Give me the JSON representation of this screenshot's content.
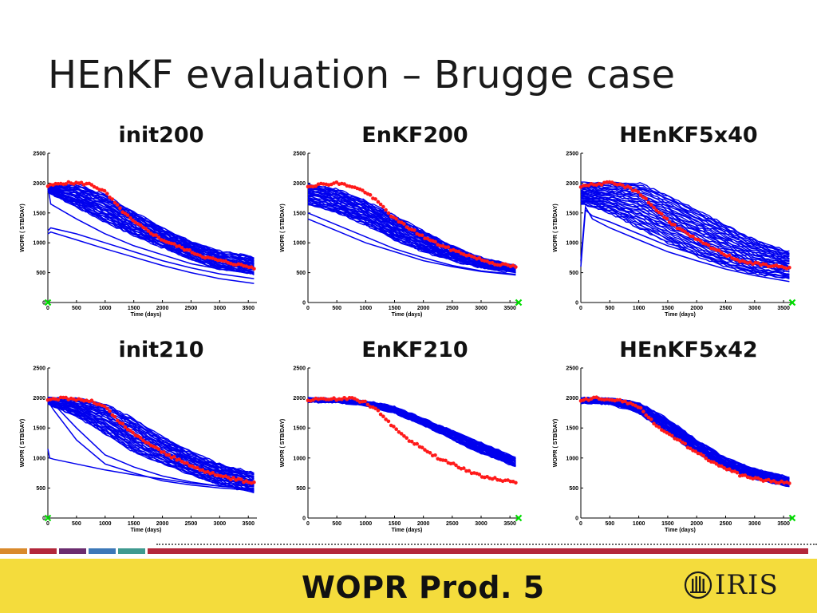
{
  "slide": {
    "title": "HEnKF evaluation – Brugge case",
    "footer_title": "WOPR Prod. 5",
    "logo_text": "IRIS"
  },
  "colors": {
    "ensemble": "#0000ee",
    "observed": "#ff1a1a",
    "marker": "#00dd00",
    "footer_bg": "#f4dc3c",
    "band": [
      "#d98a2b",
      "#b3273a",
      "#6b2d6f",
      "#3d78b8",
      "#3f9a8f",
      "#b3273a"
    ]
  },
  "chart_data": [
    {
      "type": "line",
      "title": "init200",
      "xlabel": "Time (days)",
      "ylabel": "WOPR ( STB/DAY)",
      "xlim": [
        0,
        3650
      ],
      "ylim": [
        0,
        2500
      ],
      "xticks": [
        0,
        500,
        1000,
        1500,
        2000,
        2500,
        3000,
        3500
      ],
      "yticks": [
        0,
        500,
        1000,
        1500,
        2000,
        2500
      ],
      "ensemble": {
        "name": "ensemble",
        "count": "many",
        "x": [
          0,
          500,
          1000,
          1500,
          2000,
          2500,
          3000,
          3600
        ],
        "upper": [
          1950,
          1980,
          1800,
          1520,
          1250,
          1020,
          860,
          760
        ],
        "lower": [
          1850,
          1600,
          1350,
          1120,
          920,
          720,
          560,
          470
        ],
        "outliers": [
          {
            "x": [
              0,
              50,
              500,
              1000,
              1500,
              2000,
              2500,
              3000,
              3600
            ],
            "y": [
              1950,
              1650,
              1400,
              1150,
              950,
              800,
              650,
              560,
              480
            ]
          },
          {
            "x": [
              0,
              50,
              500,
              1000,
              1500,
              2000,
              2500,
              3000,
              3600
            ],
            "y": [
              1200,
              1250,
              1150,
              1000,
              850,
              700,
              580,
              480,
              400
            ]
          },
          {
            "x": [
              0,
              50,
              500,
              1000,
              1500,
              2000,
              2500,
              3000,
              3600
            ],
            "y": [
              1150,
              1180,
              1050,
              900,
              760,
              620,
              500,
              400,
              320
            ]
          }
        ]
      },
      "observed": {
        "name": "observed",
        "x": [
          0,
          250,
          500,
          750,
          1000,
          1250,
          1500,
          1750,
          2000,
          2250,
          2500,
          2750,
          3000,
          3250,
          3600
        ],
        "y": [
          1950,
          2000,
          2000,
          1980,
          1850,
          1580,
          1350,
          1200,
          1050,
          950,
          850,
          760,
          700,
          650,
          580
        ]
      },
      "marker": {
        "x": 0,
        "y": 0
      }
    },
    {
      "type": "line",
      "title": "EnKF200",
      "xlabel": "Time (days)",
      "ylabel": "WOPR ( STB/DAY)",
      "xlim": [
        0,
        3650
      ],
      "ylim": [
        0,
        2500
      ],
      "xticks": [
        0,
        500,
        1000,
        1500,
        2000,
        2500,
        3000,
        3500
      ],
      "yticks": [
        0,
        500,
        1000,
        1500,
        2000,
        2500
      ],
      "ensemble": {
        "name": "ensemble",
        "count": "many",
        "x": [
          0,
          500,
          1000,
          1500,
          2000,
          2500,
          3000,
          3600
        ],
        "upper": [
          1980,
          1900,
          1700,
          1450,
          1200,
          950,
          750,
          620
        ],
        "lower": [
          1650,
          1500,
          1300,
          1050,
          850,
          700,
          580,
          500
        ],
        "outliers": [
          {
            "x": [
              0,
              500,
              1000,
              1500,
              2000,
              2500,
              3000,
              3600
            ],
            "y": [
              1500,
              1300,
              1100,
              900,
              750,
              620,
              530,
              470
            ]
          },
          {
            "x": [
              0,
              500,
              1000,
              1500,
              2000,
              2500,
              3000,
              3600
            ],
            "y": [
              1400,
              1200,
              1000,
              850,
              700,
              600,
              520,
              460
            ]
          }
        ]
      },
      "observed": {
        "name": "observed",
        "x": [
          0,
          250,
          500,
          750,
          1000,
          1250,
          1500,
          1750,
          2000,
          2250,
          2500,
          2750,
          3000,
          3250,
          3600
        ],
        "y": [
          1950,
          1980,
          2000,
          1950,
          1850,
          1650,
          1400,
          1250,
          1100,
          980,
          880,
          800,
          720,
          650,
          600
        ]
      },
      "marker": {
        "x": 3650,
        "y": 0
      }
    },
    {
      "type": "line",
      "title": "HEnKF5x40",
      "xlabel": "Time (days)",
      "ylabel": "WOPR ( STB/DAY)",
      "xlim": [
        0,
        3650
      ],
      "ylim": [
        0,
        2500
      ],
      "xticks": [
        0,
        500,
        1000,
        1500,
        2000,
        2500,
        3000,
        3500
      ],
      "yticks": [
        0,
        500,
        1000,
        1500,
        2000,
        2500
      ],
      "ensemble": {
        "name": "ensemble",
        "count": "many",
        "x": [
          0,
          500,
          1000,
          1500,
          2000,
          2500,
          3000,
          3600
        ],
        "upper": [
          2000,
          2000,
          2000,
          1800,
          1550,
          1300,
          1050,
          850
        ],
        "lower": [
          1650,
          1500,
          1250,
          1000,
          780,
          600,
          480,
          400
        ],
        "outliers": [
          {
            "x": [
              0,
              80,
              200,
              500,
              1000,
              1500,
              2000,
              2500,
              3000,
              3600
            ],
            "y": [
              600,
              1550,
              1450,
              1350,
              1150,
              950,
              800,
              650,
              520,
              420
            ]
          },
          {
            "x": [
              0,
              80,
              200,
              500,
              1000,
              1500,
              2000,
              2500,
              3000,
              3600
            ],
            "y": [
              700,
              1600,
              1400,
              1250,
              1050,
              850,
              700,
              560,
              450,
              350
            ]
          }
        ]
      },
      "observed": {
        "name": "observed",
        "x": [
          0,
          250,
          500,
          750,
          1000,
          1250,
          1500,
          1750,
          2000,
          2250,
          2500,
          2750,
          3000,
          3250,
          3600
        ],
        "y": [
          1950,
          1980,
          2000,
          1950,
          1850,
          1600,
          1380,
          1200,
          1050,
          920,
          800,
          700,
          650,
          620,
          580
        ]
      },
      "marker": {
        "x": 3650,
        "y": 0
      }
    },
    {
      "type": "line",
      "title": "init210",
      "xlabel": "Time (days)",
      "ylabel": "WOPR ( STB/DAY)",
      "xlim": [
        0,
        3650
      ],
      "ylim": [
        0,
        2500
      ],
      "xticks": [
        0,
        500,
        1000,
        1500,
        2000,
        2500,
        3000,
        3500
      ],
      "yticks": [
        0,
        500,
        1000,
        1500,
        2000,
        2500
      ],
      "ensemble": {
        "name": "ensemble",
        "count": "many",
        "x": [
          0,
          500,
          1000,
          1500,
          2000,
          2500,
          3000,
          3600
        ],
        "upper": [
          2000,
          2000,
          1900,
          1650,
          1350,
          1100,
          900,
          750
        ],
        "lower": [
          1900,
          1700,
          1400,
          1100,
          900,
          720,
          550,
          420
        ],
        "outliers": [
          {
            "x": [
              0,
              100,
              500,
              1000,
              1500,
              2000,
              2500,
              3000,
              3600
            ],
            "y": [
              1950,
              1900,
              1500,
              1050,
              850,
              700,
              600,
              530,
              480
            ]
          },
          {
            "x": [
              0,
              100,
              500,
              1000,
              1500,
              2000,
              2500,
              3000,
              3600
            ],
            "y": [
              1950,
              1800,
              1300,
              900,
              750,
              620,
              550,
              500,
              460
            ]
          },
          {
            "x": [
              0,
              30,
              100,
              500,
              1000,
              1500,
              2000,
              2500,
              3000,
              3600
            ],
            "y": [
              1150,
              1000,
              980,
              900,
              800,
              720,
              650,
              580,
              530,
              490
            ]
          }
        ]
      },
      "observed": {
        "name": "observed",
        "x": [
          0,
          250,
          500,
          750,
          1000,
          1250,
          1500,
          1750,
          2000,
          2250,
          2500,
          2750,
          3000,
          3250,
          3600
        ],
        "y": [
          1950,
          2000,
          1980,
          1950,
          1850,
          1600,
          1400,
          1250,
          1100,
          980,
          870,
          780,
          700,
          650,
          580
        ]
      },
      "marker": {
        "x": 0,
        "y": 0
      }
    },
    {
      "type": "line",
      "title": "EnKF210",
      "xlabel": "Time (days)",
      "ylabel": "WOPR ( STB/DAY)",
      "xlim": [
        0,
        3650
      ],
      "ylim": [
        0,
        2500
      ],
      "xticks": [
        0,
        500,
        1000,
        1500,
        2000,
        2500,
        3000,
        3500
      ],
      "yticks": [
        0,
        500,
        1000,
        1500,
        2000,
        2500
      ],
      "ensemble": {
        "name": "ensemble",
        "count": "many",
        "x": [
          0,
          500,
          1000,
          1500,
          2000,
          2500,
          3000,
          3600
        ],
        "upper": [
          2000,
          1980,
          1950,
          1850,
          1650,
          1450,
          1250,
          1000
        ],
        "lower": [
          1930,
          1930,
          1880,
          1750,
          1550,
          1300,
          1080,
          860
        ],
        "outliers": []
      },
      "observed": {
        "name": "observed",
        "x": [
          0,
          250,
          500,
          750,
          1000,
          1250,
          1500,
          1750,
          2000,
          2250,
          2500,
          2750,
          3000,
          3250,
          3600
        ],
        "y": [
          1950,
          2000,
          1980,
          2000,
          1920,
          1750,
          1500,
          1300,
          1150,
          1000,
          900,
          800,
          700,
          650,
          600
        ]
      },
      "marker": {
        "x": 3650,
        "y": 0
      }
    },
    {
      "type": "line",
      "title": "HEnKF5x42",
      "xlabel": "Time (days)",
      "ylabel": "WOPR ( STB/DAY)",
      "xlim": [
        0,
        3650
      ],
      "ylim": [
        0,
        2500
      ],
      "xticks": [
        0,
        500,
        1000,
        1500,
        2000,
        2500,
        3000,
        3500
      ],
      "yticks": [
        0,
        500,
        1000,
        1500,
        2000,
        2500
      ],
      "ensemble": {
        "name": "ensemble",
        "count": "many",
        "x": [
          0,
          500,
          1000,
          1500,
          2000,
          2500,
          3000,
          3600
        ],
        "upper": [
          2000,
          2000,
          1920,
          1650,
          1300,
          1000,
          820,
          680
        ],
        "lower": [
          1920,
          1900,
          1750,
          1420,
          1080,
          820,
          650,
          520
        ],
        "outliers": []
      },
      "observed": {
        "name": "observed",
        "x": [
          0,
          250,
          500,
          750,
          1000,
          1250,
          1500,
          1750,
          2000,
          2250,
          2500,
          2750,
          3000,
          3250,
          3600
        ],
        "y": [
          1950,
          2000,
          1980,
          1950,
          1850,
          1600,
          1400,
          1250,
          1100,
          950,
          820,
          720,
          660,
          620,
          580
        ]
      },
      "marker": {
        "x": 3650,
        "y": 0
      }
    }
  ]
}
